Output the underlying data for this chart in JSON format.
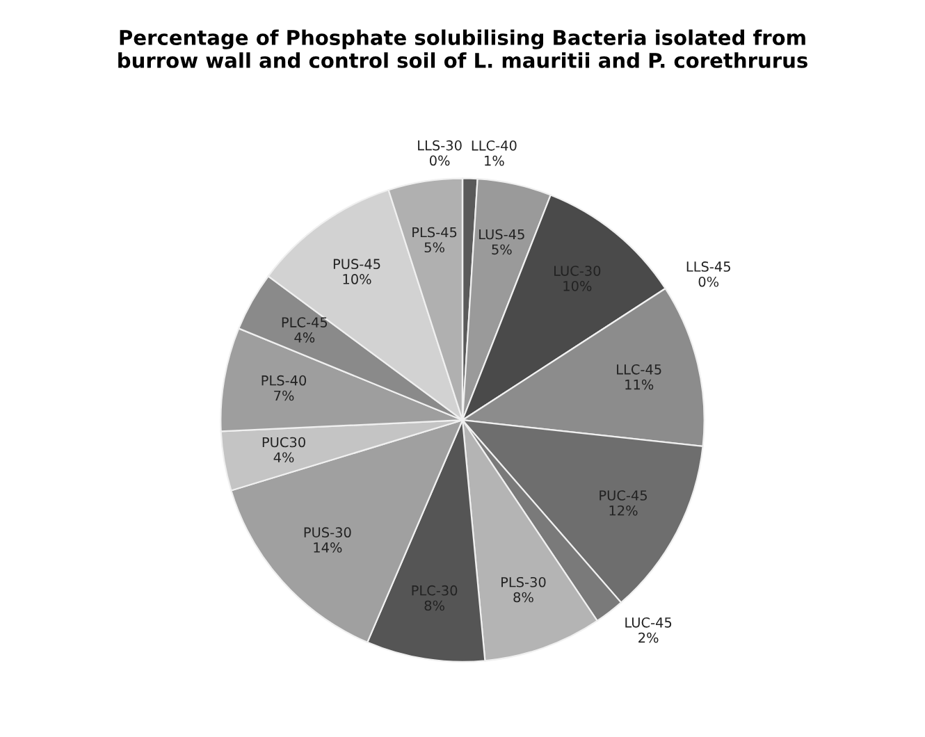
{
  "chart_data": {
    "type": "pie",
    "title": "Percentage of Phosphate solubilising Bacteria isolated from\nburrow wall and control soil of L. mauritii and P. corethrurus",
    "categories": [
      "LLC-40",
      "LUS-45",
      "LUC-30",
      "LLS-45",
      "LLC-45",
      "PUC-45",
      "LUC-45",
      "PLS-30",
      "PLC-30",
      "PUS-30",
      "PUC30",
      "PLS-40",
      "PLC-45",
      "PUS-45",
      "PLS-45",
      "LLS-30"
    ],
    "values": [
      1,
      5,
      10,
      0,
      11,
      12,
      2,
      8,
      8,
      14,
      4,
      7,
      4,
      10,
      5,
      0
    ],
    "value_labels": [
      "1%",
      "5%",
      "10%",
      "0%",
      "11%",
      "12%",
      "2%",
      "8%",
      "8%",
      "14%",
      "4%",
      "7%",
      "4%",
      "10%",
      "5%",
      "0%"
    ],
    "colors": [
      "#5a5a5a",
      "#9a9a9a",
      "#4a4a4a",
      "#bdbdbd",
      "#8c8c8c",
      "#6e6e6e",
      "#7a7a7a",
      "#b4b4b4",
      "#555555",
      "#a0a0a0",
      "#c4c4c4",
      "#9e9e9e",
      "#8a8a8a",
      "#d2d2d2",
      "#b0b0b0",
      "#e0e0e0"
    ],
    "legend": false
  }
}
